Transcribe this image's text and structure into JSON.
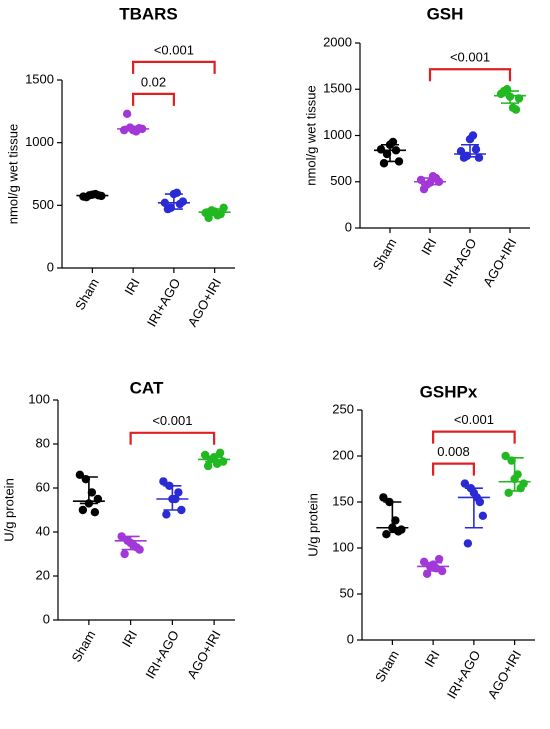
{
  "chart_data": [
    {
      "type": "dot",
      "title": "TBARS",
      "ylabel": "nmol/g wet tissue",
      "categories": [
        "Sham",
        "IRI",
        "IRI+AGO",
        "AGO+IRI"
      ],
      "colors": [
        "#000000",
        "#a238d8",
        "#2b2bd6",
        "#22b822"
      ],
      "points": [
        [
          570,
          580,
          590,
          575,
          565,
          585,
          580
        ],
        [
          1100,
          1120,
          1090,
          1110,
          1230,
          1100,
          1115
        ],
        [
          520,
          480,
          600,
          530,
          470,
          590,
          510
        ],
        [
          440,
          460,
          420,
          480,
          400,
          450,
          430
        ]
      ],
      "median": [
        578,
        1110,
        520,
        445
      ],
      "lower": [
        565,
        1095,
        470,
        420
      ],
      "upper": [
        590,
        1130,
        590,
        470
      ],
      "comparisons": [
        {
          "from": 1,
          "to": 2,
          "label": "0.02"
        },
        {
          "from": 1,
          "to": 3,
          "label": "<0.001"
        }
      ],
      "ylim": [
        0,
        1500
      ],
      "yticks": [
        0,
        500,
        1000,
        1500
      ],
      "bracket_color": "#e02020"
    },
    {
      "type": "dot",
      "title": "GSH",
      "ylabel": "nmol/g wet tissue",
      "categories": [
        "Sham",
        "IRI",
        "IRI+AGO",
        "AGO+IRI"
      ],
      "colors": [
        "#000000",
        "#a238d8",
        "#2b2bd6",
        "#22b822"
      ],
      "points": [
        [
          850,
          800,
          930,
          720,
          700,
          900,
          840
        ],
        [
          520,
          470,
          560,
          500,
          420,
          490,
          540
        ],
        [
          830,
          780,
          1000,
          760,
          760,
          960,
          850
        ],
        [
          1450,
          1500,
          1300,
          1400,
          1480,
          1420,
          1280
        ]
      ],
      "median": [
        840,
        500,
        800,
        1430
      ],
      "lower": [
        720,
        470,
        770,
        1350
      ],
      "upper": [
        900,
        540,
        900,
        1480
      ],
      "comparisons": [
        {
          "from": 1,
          "to": 3,
          "label": "<0.001"
        }
      ],
      "ylim": [
        0,
        2000
      ],
      "yticks": [
        0,
        500,
        1000,
        1500,
        2000
      ],
      "bracket_color": "#e02020"
    },
    {
      "type": "dot",
      "title": "CAT",
      "ylabel": "U/g protein",
      "categories": [
        "Sham",
        "IRI",
        "IRI+AGO",
        "AGO+IRI"
      ],
      "colors": [
        "#000000",
        "#a238d8",
        "#2b2bd6",
        "#22b822"
      ],
      "points": [
        [
          66,
          64,
          58,
          55,
          50,
          53,
          49
        ],
        [
          38,
          36,
          34,
          32,
          30,
          35,
          33
        ],
        [
          63,
          61,
          55,
          50,
          48,
          55,
          58
        ],
        [
          75,
          73,
          71,
          72,
          70,
          74,
          76
        ]
      ],
      "median": [
        54,
        36,
        55,
        73
      ],
      "lower": [
        53,
        32,
        50,
        72
      ],
      "upper": [
        65,
        38,
        61,
        74
      ],
      "comparisons": [
        {
          "from": 1,
          "to": 3,
          "label": "<0.001"
        }
      ],
      "ylim": [
        0,
        100
      ],
      "yticks": [
        0,
        20,
        40,
        60,
        80,
        100
      ],
      "bracket_color": "#e02020"
    },
    {
      "type": "dot",
      "title": "GSHPx",
      "ylabel": "U/g protein",
      "categories": [
        "Sham",
        "IRI",
        "IRI+AGO",
        "AGO+IRI"
      ],
      "colors": [
        "#000000",
        "#a238d8",
        "#2b2bd6",
        "#22b822"
      ],
      "points": [
        [
          155,
          150,
          130,
          120,
          115,
          122,
          118
        ],
        [
          85,
          80,
          78,
          75,
          72,
          82,
          88
        ],
        [
          170,
          165,
          155,
          135,
          105,
          160,
          150
        ],
        [
          200,
          195,
          180,
          170,
          160,
          175,
          165
        ]
      ],
      "median": [
        122,
        80,
        155,
        172
      ],
      "lower": [
        117,
        75,
        122,
        162
      ],
      "upper": [
        150,
        84,
        165,
        198
      ],
      "comparisons": [
        {
          "from": 1,
          "to": 2,
          "label": "0.008"
        },
        {
          "from": 1,
          "to": 3,
          "label": "<0.001"
        }
      ],
      "ylim": [
        0,
        250
      ],
      "yticks": [
        0,
        50,
        100,
        150,
        200,
        250
      ],
      "bracket_color": "#e02020"
    }
  ]
}
